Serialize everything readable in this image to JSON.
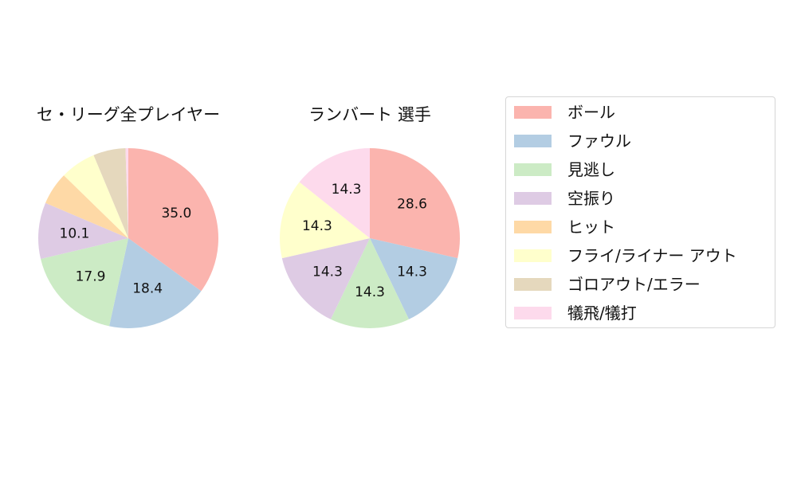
{
  "chart_data": [
    {
      "type": "pie",
      "title": "セ・リーグ全プレイヤー",
      "categories": [
        "ボール",
        "ファウル",
        "見逃し",
        "空振り",
        "ヒット",
        "フライ/ライナー アウト",
        "ゴロアウト/エラー",
        "犠飛/犠打"
      ],
      "values": [
        35.0,
        18.4,
        17.9,
        10.1,
        5.9,
        6.4,
        5.8,
        0.5
      ],
      "labels_shown": [
        "35.0",
        "18.4",
        "17.9",
        "10.1",
        "",
        "",
        "",
        ""
      ],
      "start_angle": 90,
      "direction": "clockwise"
    },
    {
      "type": "pie",
      "title": "ランバート  選手",
      "categories": [
        "ボール",
        "ファウル",
        "見逃し",
        "空振り",
        "ヒット",
        "フライ/ライナー アウト",
        "ゴロアウト/エラー",
        "犠飛/犠打"
      ],
      "values": [
        28.6,
        14.3,
        14.3,
        14.3,
        0,
        14.3,
        0,
        14.3
      ],
      "labels_shown": [
        "28.6",
        "14.3",
        "14.3",
        "14.3",
        "",
        "14.3",
        "",
        "14.3"
      ],
      "start_angle": 90,
      "direction": "clockwise"
    }
  ],
  "colors": [
    "#fbb4ae",
    "#b3cde3",
    "#ccebc5",
    "#decbe4",
    "#fed9a6",
    "#ffffcc",
    "#e5d8bd",
    "#fddaec"
  ],
  "legend": {
    "position": "right",
    "items": [
      "ボール",
      "ファウル",
      "見逃し",
      "空振り",
      "ヒット",
      "フライ/ライナー アウト",
      "ゴロアウト/エラー",
      "犠飛/犠打"
    ]
  }
}
